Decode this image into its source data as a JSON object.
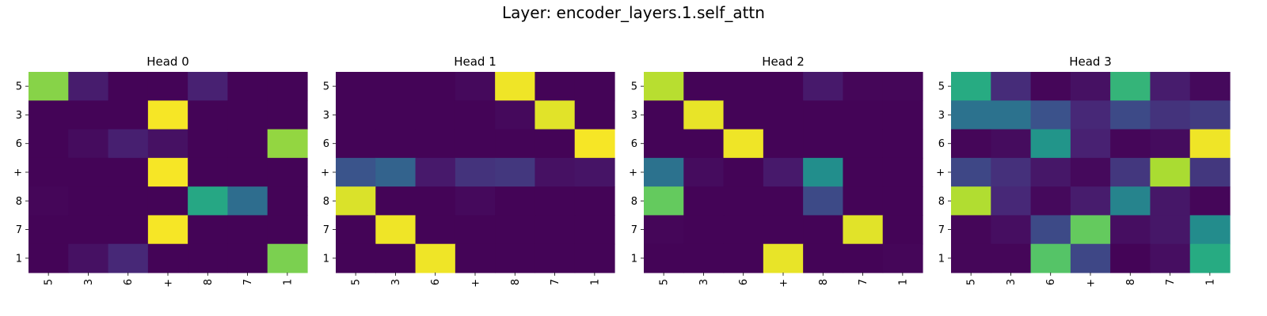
{
  "figure": {
    "title": "Layer: encoder_layers.1.self_attn"
  },
  "chart_data": [
    {
      "type": "heatmap",
      "title": "Head 0",
      "colormap": "viridis",
      "vmin": 0,
      "vmax": 1,
      "y_labels": [
        "5",
        "3",
        "6",
        "+",
        "8",
        "7",
        "1"
      ],
      "x_labels": [
        "5",
        "3",
        "6",
        "+",
        "8",
        "7",
        "1"
      ],
      "values": [
        [
          0.82,
          0.1,
          0.01,
          0.01,
          0.12,
          0.01,
          0.01
        ],
        [
          0.01,
          0.01,
          0.01,
          0.99,
          0.01,
          0.01,
          0.01
        ],
        [
          0.01,
          0.04,
          0.11,
          0.06,
          0.01,
          0.01,
          0.84
        ],
        [
          0.01,
          0.01,
          0.01,
          0.99,
          0.01,
          0.01,
          0.01
        ],
        [
          0.02,
          0.01,
          0.01,
          0.01,
          0.6,
          0.36,
          0.01
        ],
        [
          0.01,
          0.01,
          0.01,
          0.99,
          0.01,
          0.01,
          0.01
        ],
        [
          0.01,
          0.06,
          0.14,
          0.01,
          0.01,
          0.01,
          0.8
        ]
      ]
    },
    {
      "type": "heatmap",
      "title": "Head 1",
      "colormap": "viridis",
      "vmin": 0,
      "vmax": 1,
      "y_labels": [
        "5",
        "3",
        "6",
        "+",
        "8",
        "7",
        "1"
      ],
      "x_labels": [
        "5",
        "3",
        "6",
        "+",
        "8",
        "7",
        "1"
      ],
      "values": [
        [
          0.01,
          0.01,
          0.01,
          0.03,
          0.98,
          0.01,
          0.01
        ],
        [
          0.01,
          0.01,
          0.01,
          0.01,
          0.03,
          0.96,
          0.01
        ],
        [
          0.01,
          0.01,
          0.01,
          0.01,
          0.01,
          0.01,
          0.99
        ],
        [
          0.26,
          0.32,
          0.09,
          0.17,
          0.18,
          0.06,
          0.07
        ],
        [
          0.95,
          0.01,
          0.01,
          0.03,
          0.01,
          0.01,
          0.01
        ],
        [
          0.01,
          0.98,
          0.01,
          0.01,
          0.01,
          0.01,
          0.01
        ],
        [
          0.01,
          0.01,
          0.98,
          0.01,
          0.01,
          0.01,
          0.01
        ]
      ]
    },
    {
      "type": "heatmap",
      "title": "Head 2",
      "colormap": "viridis",
      "vmin": 0,
      "vmax": 1,
      "y_labels": [
        "5",
        "3",
        "6",
        "+",
        "8",
        "7",
        "1"
      ],
      "x_labels": [
        "5",
        "3",
        "6",
        "+",
        "8",
        "7",
        "1"
      ],
      "values": [
        [
          0.9,
          0.01,
          0.01,
          0.01,
          0.09,
          0.02,
          0.02
        ],
        [
          0.01,
          0.97,
          0.01,
          0.01,
          0.01,
          0.01,
          0.01
        ],
        [
          0.01,
          0.01,
          0.98,
          0.01,
          0.01,
          0.01,
          0.01
        ],
        [
          0.38,
          0.04,
          0.01,
          0.09,
          0.49,
          0.01,
          0.01
        ],
        [
          0.76,
          0.01,
          0.01,
          0.01,
          0.23,
          0.01,
          0.01
        ],
        [
          0.02,
          0.01,
          0.01,
          0.01,
          0.01,
          0.96,
          0.01
        ],
        [
          0.01,
          0.01,
          0.01,
          0.97,
          0.01,
          0.01,
          0.02
        ]
      ]
    },
    {
      "type": "heatmap",
      "title": "Head 3",
      "colormap": "viridis",
      "vmin": 0,
      "vmax": 1,
      "y_labels": [
        "5",
        "3",
        "6",
        "+",
        "8",
        "7",
        "1"
      ],
      "x_labels": [
        "5",
        "3",
        "6",
        "+",
        "8",
        "7",
        "1"
      ],
      "values": [
        [
          0.62,
          0.15,
          0.02,
          0.06,
          0.66,
          0.1,
          0.03
        ],
        [
          0.38,
          0.38,
          0.25,
          0.14,
          0.23,
          0.17,
          0.19
        ],
        [
          0.02,
          0.04,
          0.52,
          0.12,
          0.02,
          0.04,
          0.98
        ],
        [
          0.22,
          0.16,
          0.08,
          0.03,
          0.18,
          0.88,
          0.18
        ],
        [
          0.89,
          0.14,
          0.03,
          0.1,
          0.45,
          0.08,
          0.02
        ],
        [
          0.02,
          0.05,
          0.23,
          0.76,
          0.05,
          0.08,
          0.48
        ],
        [
          0.02,
          0.02,
          0.73,
          0.22,
          0.01,
          0.05,
          0.62
        ]
      ]
    }
  ]
}
